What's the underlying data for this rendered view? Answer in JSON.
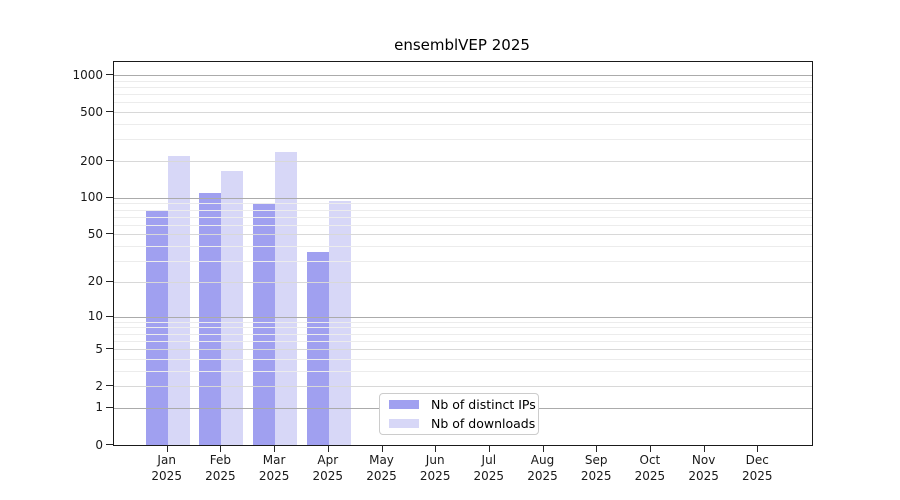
{
  "title": "ensemblVEP 2025",
  "chart_data": {
    "type": "bar",
    "title": "ensemblVEP 2025",
    "categories": [
      "Jan",
      "Feb",
      "Mar",
      "Apr",
      "May",
      "Jun",
      "Jul",
      "Aug",
      "Sep",
      "Oct",
      "Nov",
      "Dec"
    ],
    "year_label": "2025",
    "series": [
      {
        "name": "Nb of distinct IPs",
        "color": "#a0a0f0",
        "values": [
          78,
          110,
          91,
          36,
          0,
          0,
          0,
          0,
          0,
          0,
          0,
          0
        ]
      },
      {
        "name": "Nb of downloads",
        "color": "#d7d7f7",
        "values": [
          220,
          165,
          235,
          95,
          0,
          0,
          0,
          0,
          0,
          0,
          0,
          0
        ]
      }
    ],
    "yscale": "log1p",
    "ylim": [
      0,
      1275
    ],
    "ytick_labels": [
      "0",
      "1",
      "2",
      "5",
      "10",
      "20",
      "50",
      "100",
      "200",
      "500",
      "1000"
    ],
    "ytick_values": [
      0,
      1,
      2,
      5,
      10,
      20,
      50,
      100,
      200,
      500,
      1000
    ],
    "grid": "both",
    "legend_position": "lower-center",
    "colors": {
      "major_grid": "#ababab",
      "labeled_minor_grid": "#d8d8d8",
      "minor_grid": "#ececec",
      "spine": "#1a1a1a"
    }
  }
}
